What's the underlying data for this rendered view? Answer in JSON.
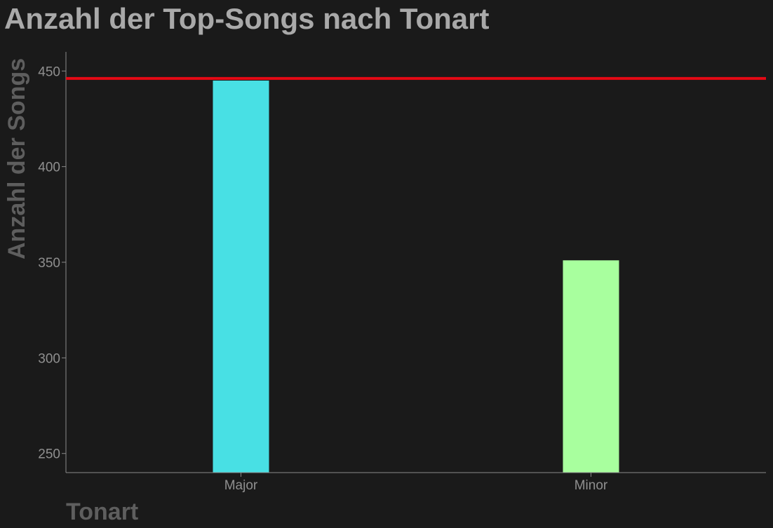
{
  "chart_data": {
    "type": "bar",
    "title": "Anzahl der Top-Songs nach Tonart",
    "xlabel": "Tonart",
    "ylabel": "Anzahl der Songs",
    "categories": [
      "Major",
      "Minor"
    ],
    "values": [
      445,
      351
    ],
    "bar_colors": [
      "#48e0e4",
      "#a8ff9e"
    ],
    "ylim": [
      240,
      460
    ],
    "yticks": [
      250,
      300,
      350,
      400,
      450
    ],
    "reference_line": {
      "value": 445,
      "color": "#e50914"
    },
    "grid": false,
    "legend": "none"
  },
  "colors": {
    "background": "#1a1a1a",
    "title": "#a9a9a9",
    "axis_title": "#5e5e5e",
    "tick_label": "#8f8f8f",
    "axis_line": "#8a8a8a"
  }
}
